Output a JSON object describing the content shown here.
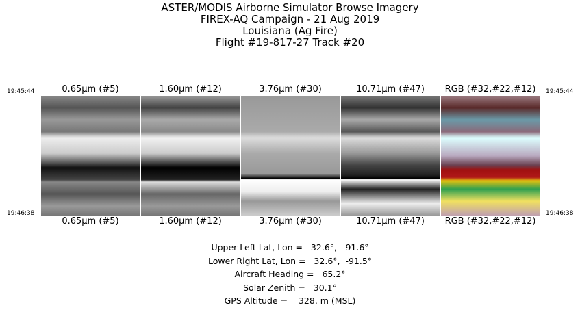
{
  "title": {
    "line1": "ASTER/MODIS Airborne Simulator Browse Imagery",
    "line2": "FIREX-AQ Campaign - 21 Aug 2019",
    "line3": "Louisiana (Ag Fire)",
    "line4": "Flight #19-817-27 Track #20"
  },
  "times": {
    "start": "19:45:44",
    "end": "19:46:38"
  },
  "panels": [
    {
      "label": "0.65μm (#5)"
    },
    {
      "label": "1.60μm (#12)"
    },
    {
      "label": "3.76μm (#30)"
    },
    {
      "label": "10.71μm (#47)"
    },
    {
      "label": "RGB (#32,#22,#12)"
    }
  ],
  "info": [
    {
      "label": "Upper Left Lat, Lon =",
      "value": "   32.6°,  -91.6°"
    },
    {
      "label": "Lower Right Lat, Lon =",
      "value": "   32.6°,  -91.5°"
    },
    {
      "label": "Aircraft Heading =",
      "value": "   65.2°"
    },
    {
      "label": "Solar Zenith =",
      "value": "   30.1°"
    },
    {
      "label": "GPS Altitude =",
      "value": "    328. m (MSL)"
    }
  ]
}
